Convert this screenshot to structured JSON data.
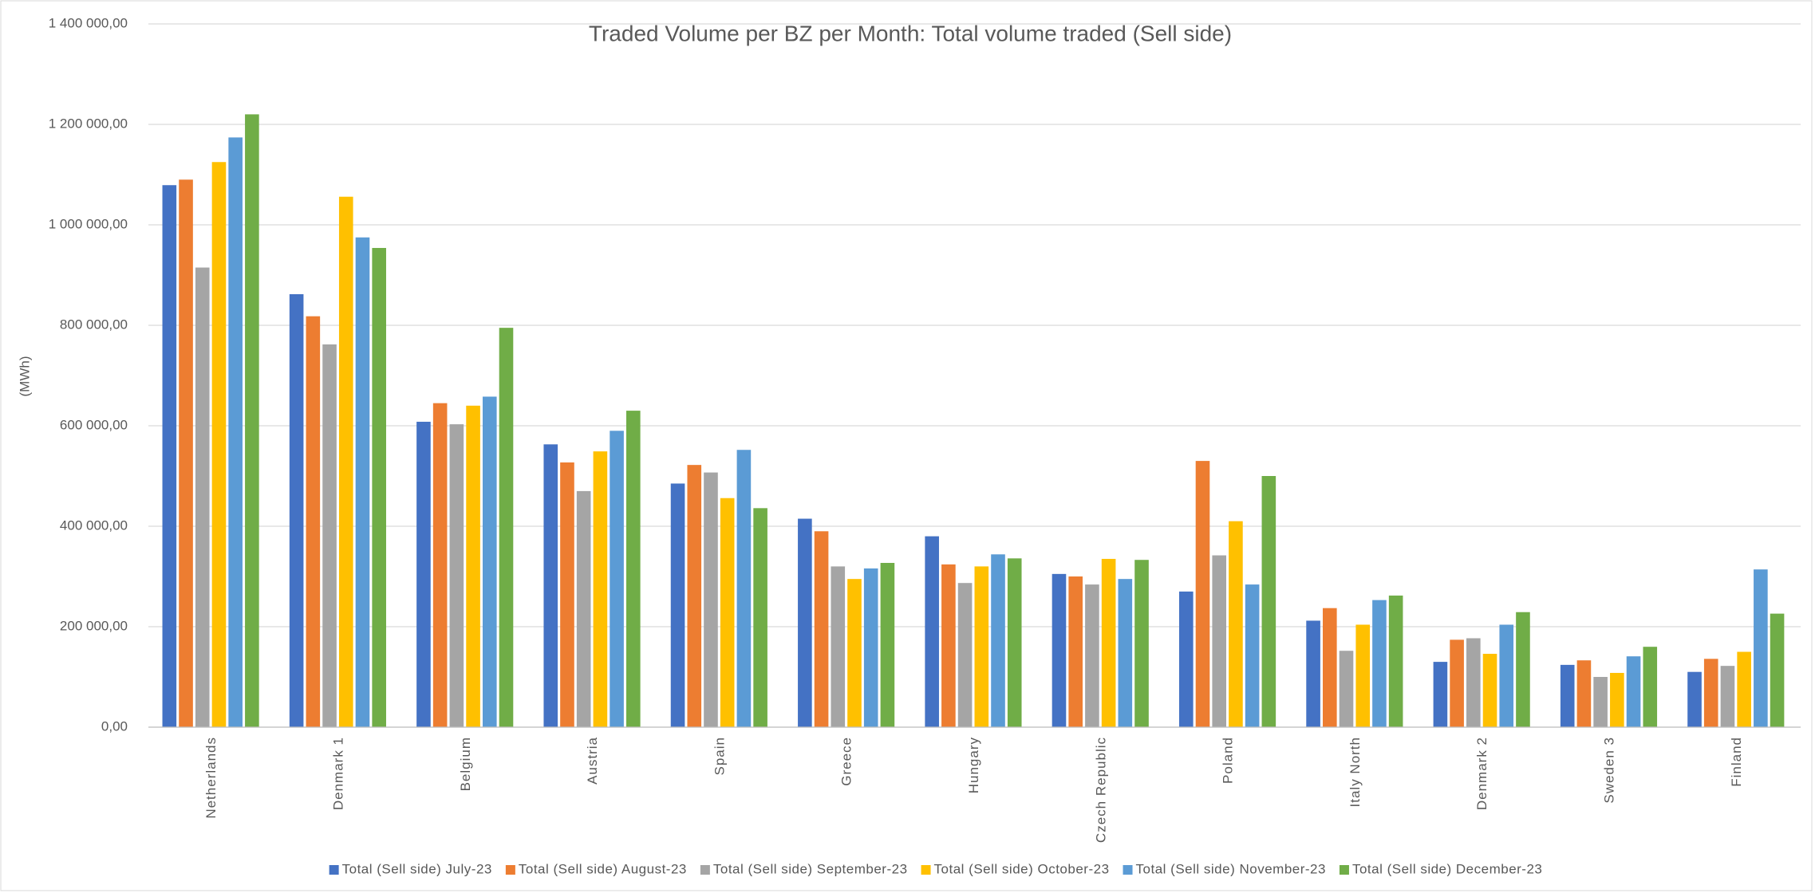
{
  "chart_data": {
    "type": "bar",
    "title": "Traded Volume per BZ per Month: Total volume traded (Sell side)",
    "y_label": "(MWh)",
    "categories": [
      "Netherlands",
      "Denmark 1",
      "Belgium",
      "Austria",
      "Spain",
      "Greece",
      "Hungary",
      "Czech Republic",
      "Poland",
      "Italy North",
      "Denmark 2",
      "Sweden 3",
      "Finland"
    ],
    "series": [
      {
        "name": "Total (Sell side) July-23",
        "color": "#4472c4",
        "values": [
          1079000,
          862000,
          608000,
          563000,
          485000,
          415000,
          380000,
          305000,
          270000,
          212000,
          130000,
          124000,
          110000
        ]
      },
      {
        "name": "Total (Sell side) August-23",
        "color": "#ed7d31",
        "values": [
          1090000,
          818000,
          645000,
          527000,
          522000,
          390000,
          324000,
          300000,
          530000,
          237000,
          174000,
          133000,
          136000
        ]
      },
      {
        "name": "Total (Sell side) September-23",
        "color": "#a5a5a5",
        "values": [
          915000,
          762000,
          603000,
          470000,
          507000,
          320000,
          287000,
          284000,
          342000,
          152000,
          177000,
          100000,
          122000
        ]
      },
      {
        "name": "Total (Sell side) October-23",
        "color": "#ffc000",
        "values": [
          1125000,
          1056000,
          640000,
          549000,
          456000,
          295000,
          320000,
          335000,
          410000,
          204000,
          146000,
          108000,
          150000
        ]
      },
      {
        "name": "Total (Sell side) November-23",
        "color": "#5b9bd5",
        "values": [
          1174000,
          975000,
          658000,
          590000,
          552000,
          316000,
          344000,
          295000,
          284000,
          253000,
          204000,
          141000,
          314000
        ]
      },
      {
        "name": "Total (Sell side) December-23",
        "color": "#70ad47",
        "values": [
          1220000,
          954000,
          795000,
          630000,
          436000,
          327000,
          336000,
          333000,
          500000,
          262000,
          229000,
          160000,
          226000
        ]
      }
    ],
    "ylim": [
      0,
      1400000
    ],
    "yticks": [
      {
        "value": 0,
        "label": "0,00"
      },
      {
        "value": 200000,
        "label": "200 000,00"
      },
      {
        "value": 400000,
        "label": "400 000,00"
      },
      {
        "value": 600000,
        "label": "600 000,00"
      },
      {
        "value": 800000,
        "label": "800 000,00"
      },
      {
        "value": 1000000,
        "label": "1 000 000,00"
      },
      {
        "value": 1200000,
        "label": "1 200 000,00"
      },
      {
        "value": 1400000,
        "label": "1 400 000,00"
      }
    ],
    "grid": true,
    "legend": "bottom"
  }
}
